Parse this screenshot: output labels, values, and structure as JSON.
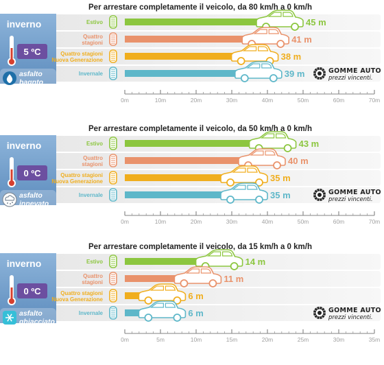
{
  "colors": {
    "estivo": "#8CC63F",
    "quattro": "#E9926B",
    "nuova": "#F0AE1E",
    "invernale": "#5EB7C9",
    "season_panel": "#6E9CC8",
    "thermometer_label": "#6C4FA0",
    "wet_icon": "#1E6FA8",
    "snow_icon": "#808C99",
    "ice_icon": "#35BFD8"
  },
  "icons": [
    "tyre-summer-icon",
    "tyre-allseason-icon",
    "tyre-allseason-newgen-icon",
    "tyre-winter-icon",
    "car-icon",
    "thermometer-icon",
    "water-drop-icon",
    "snow-cloud-icon",
    "snowflake-icon",
    "gomme-auto-logo"
  ],
  "logo": {
    "line1": "gomme auto",
    "line2": "prezzi vincenti."
  },
  "chart_data": [
    {
      "type": "bar",
      "orientation": "horizontal",
      "title": "Per arrestare completamente il veicolo, da 80 km/h a 0 km/h",
      "season": "inverno",
      "temperature": "5 ºC",
      "surface": [
        "asfalto",
        "bagnto"
      ],
      "surface_icon": "water-drop-icon",
      "categories": [
        [
          "Estivo"
        ],
        [
          "Quattro",
          "stagioni"
        ],
        [
          "Quattro stagioni",
          "Nuova Generazione"
        ],
        [
          "Invernale"
        ]
      ],
      "values": [
        45,
        41,
        38,
        39
      ],
      "value_labels": [
        "45 m",
        "41 m",
        "38 m",
        "39 m"
      ],
      "unit": "m",
      "xlim": [
        0,
        70
      ],
      "ticks": [
        0,
        10,
        20,
        30,
        40,
        50,
        60,
        70
      ],
      "tick_labels": [
        "0m",
        "10m",
        "20m",
        "30m",
        "40m",
        "50m",
        "60m",
        "70m"
      ]
    },
    {
      "type": "bar",
      "orientation": "horizontal",
      "title": "Per arrestare completamente il veicolo, da 50 km/h a 0 km/h",
      "season": "inverno",
      "temperature": "0 ºC",
      "surface": [
        "asfalto",
        "innevato"
      ],
      "surface_icon": "snow-cloud-icon",
      "categories": [
        [
          "Estivo"
        ],
        [
          "Quattro",
          "stagioni"
        ],
        [
          "Quattro stagioni",
          "Nuova Generazione"
        ],
        [
          "Invernale"
        ]
      ],
      "values": [
        43,
        40,
        35,
        35
      ],
      "value_labels": [
        "43 m",
        "40 m",
        "35 m",
        "35 m"
      ],
      "unit": "m",
      "xlim": [
        0,
        70
      ],
      "ticks": [
        0,
        10,
        20,
        30,
        40,
        50,
        60,
        70
      ],
      "tick_labels": [
        "0m",
        "10m",
        "20m",
        "30m",
        "40m",
        "50m",
        "60m",
        "70m"
      ]
    },
    {
      "type": "bar",
      "orientation": "horizontal",
      "title": "Per arrestare completamente il veicolo, da 15 km/h a 0 km/h",
      "season": "inverno",
      "temperature": "0 ºC",
      "surface": [
        "asfalto",
        "ghiacciato"
      ],
      "surface_icon": "snowflake-icon",
      "categories": [
        [
          "Estivo"
        ],
        [
          "Quattro",
          "stagioni"
        ],
        [
          "Quattro stagioni",
          "Nuova Generazione"
        ],
        [
          "Invernale"
        ]
      ],
      "values": [
        14,
        11,
        6,
        6
      ],
      "value_labels": [
        "14 m",
        "11 m",
        "6 m",
        "6 m"
      ],
      "unit": "m",
      "xlim": [
        0,
        35
      ],
      "ticks": [
        0,
        5,
        10,
        15,
        20,
        25,
        30,
        35
      ],
      "tick_labels": [
        "0m",
        "5m",
        "10m",
        "15m",
        "20m",
        "25m",
        "30m",
        "35m"
      ]
    }
  ]
}
